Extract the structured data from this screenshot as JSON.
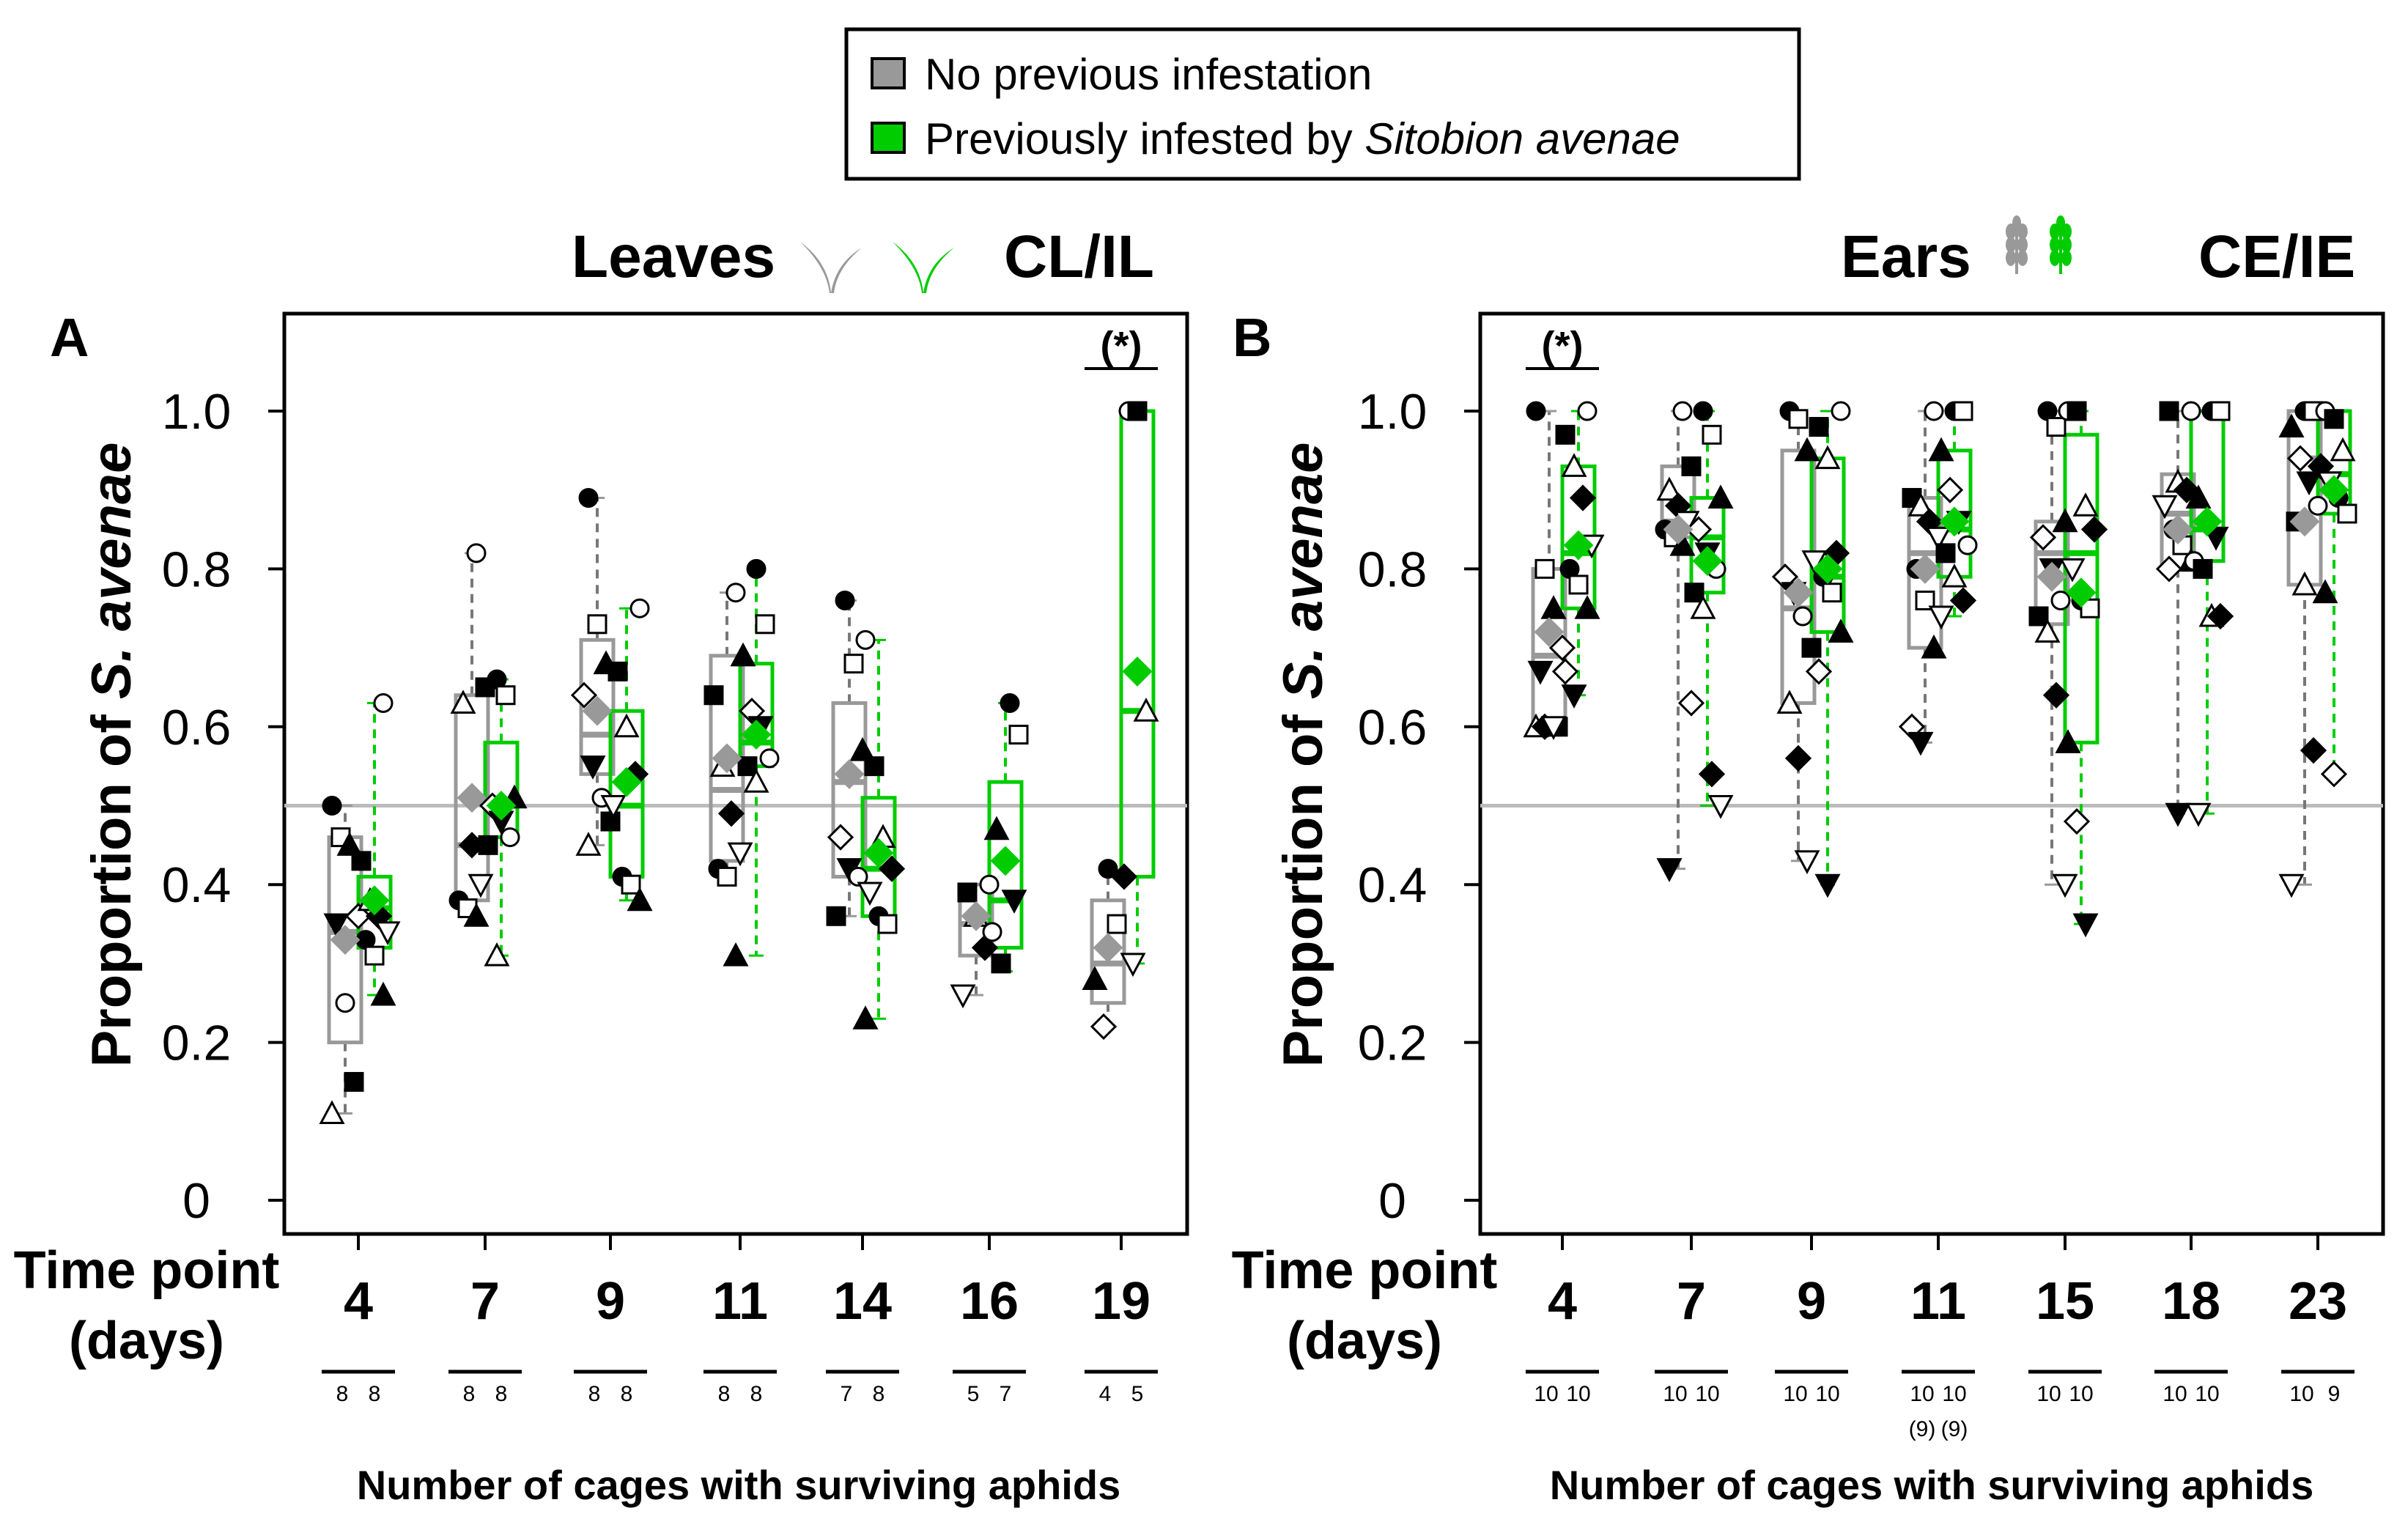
{
  "legend": {
    "items": [
      {
        "label": "No previous infestation",
        "label_italic": "",
        "color": "#999999"
      },
      {
        "label": "Previously infested by ",
        "label_italic": "Sitobion avenae",
        "color": "#00cc00"
      }
    ]
  },
  "reference_line": 0.5,
  "chart_data": [
    {
      "type": "box",
      "panel_label": "A",
      "title": "Leaves",
      "title_icon": "leaf-seedling-icon",
      "subtitle": "CL/IL",
      "ylabel": "Proportion of ",
      "ylabel_italic": "S. avenae",
      "xlabel_line1": "Time point",
      "xlabel_line2": "(days)",
      "ylim": [
        0,
        1.1
      ],
      "yticks": [
        0,
        0.2,
        0.4,
        0.6,
        0.8,
        1.0
      ],
      "ytick_labels": [
        "0",
        "0.2",
        "0.4",
        "0.6",
        "0.8",
        "1.0"
      ],
      "categories": [
        "4",
        "7",
        "9",
        "11",
        "14",
        "16",
        "19"
      ],
      "n_title": "Number of cages with surviving aphids",
      "n_cages": [
        [
          "8",
          "8"
        ],
        [
          "8",
          "8"
        ],
        [
          "8",
          "8"
        ],
        [
          "8",
          "8"
        ],
        [
          "7",
          "8"
        ],
        [
          "5",
          "7"
        ],
        [
          "4",
          "5"
        ]
      ],
      "n_cages_sub": [
        [
          "",
          ""
        ],
        [
          "",
          ""
        ],
        [
          "",
          ""
        ],
        [
          "",
          ""
        ],
        [
          "",
          ""
        ],
        [
          "",
          ""
        ],
        [
          "",
          ""
        ]
      ],
      "significance": [
        {
          "category": "19",
          "label": "(*)"
        }
      ],
      "series": [
        {
          "name": "No previous infestation",
          "color": "#999999",
          "boxes": [
            {
              "q1": 0.2,
              "median": 0.34,
              "q3": 0.46,
              "lo": 0.11,
              "hi": 0.5,
              "mean": 0.33
            },
            {
              "q1": 0.38,
              "median": 0.45,
              "q3": 0.64,
              "lo": 0.36,
              "hi": 0.82,
              "mean": 0.51
            },
            {
              "q1": 0.54,
              "median": 0.59,
              "q3": 0.71,
              "lo": 0.45,
              "hi": 0.89,
              "mean": 0.62
            },
            {
              "q1": 0.43,
              "median": 0.52,
              "q3": 0.69,
              "lo": 0.41,
              "hi": 0.77,
              "mean": 0.56
            },
            {
              "q1": 0.41,
              "median": 0.53,
              "q3": 0.63,
              "lo": 0.36,
              "hi": 0.76,
              "mean": 0.54
            },
            {
              "q1": 0.31,
              "median": 0.35,
              "q3": 0.4,
              "lo": 0.26,
              "hi": 0.4,
              "mean": 0.36
            },
            {
              "q1": 0.25,
              "median": 0.3,
              "q3": 0.38,
              "lo": 0.22,
              "hi": 0.42,
              "mean": 0.32
            }
          ]
        },
        {
          "name": "Previously infested by Sitobion avenae",
          "color": "#00cc00",
          "boxes": [
            {
              "q1": 0.32,
              "median": 0.37,
              "q3": 0.41,
              "lo": 0.26,
              "hi": 0.63,
              "mean": 0.38
            },
            {
              "q1": 0.46,
              "median": 0.5,
              "q3": 0.58,
              "lo": 0.31,
              "hi": 0.66,
              "mean": 0.5
            },
            {
              "q1": 0.41,
              "median": 0.5,
              "q3": 0.62,
              "lo": 0.38,
              "hi": 0.75,
              "mean": 0.53
            },
            {
              "q1": 0.55,
              "median": 0.58,
              "q3": 0.68,
              "lo": 0.31,
              "hi": 0.8,
              "mean": 0.59
            },
            {
              "q1": 0.36,
              "median": 0.42,
              "q3": 0.51,
              "lo": 0.23,
              "hi": 0.71,
              "mean": 0.44
            },
            {
              "q1": 0.32,
              "median": 0.38,
              "q3": 0.53,
              "lo": 0.29,
              "hi": 0.63,
              "mean": 0.43
            },
            {
              "q1": 0.41,
              "median": 0.62,
              "q3": 1.0,
              "lo": 0.3,
              "hi": 1.0,
              "mean": 0.67
            }
          ]
        }
      ],
      "points": [
        [
          [
            0.5,
            0.46,
            0.45,
            0.36,
            0.35,
            0.25,
            0.15,
            0.11
          ],
          [
            0.63,
            0.43,
            0.38,
            0.36,
            0.34,
            0.33,
            0.31,
            0.26
          ]
        ],
        [
          [
            0.82,
            0.65,
            0.63,
            0.45,
            0.4,
            0.38,
            0.37,
            0.36
          ],
          [
            0.66,
            0.64,
            0.51,
            0.5,
            0.48,
            0.46,
            0.45,
            0.31
          ]
        ],
        [
          [
            0.89,
            0.73,
            0.68,
            0.64,
            0.55,
            0.51,
            0.48,
            0.45
          ],
          [
            0.75,
            0.67,
            0.6,
            0.54,
            0.5,
            0.41,
            0.4,
            0.38
          ]
        ],
        [
          [
            0.77,
            0.64,
            0.55,
            0.49,
            0.44,
            0.42,
            0.41,
            0.31
          ],
          [
            0.8,
            0.73,
            0.69,
            0.62,
            0.6,
            0.56,
            0.55,
            0.53
          ]
        ],
        [
          [
            0.76,
            0.68,
            0.57,
            0.46,
            0.42,
            0.41,
            0.36
          ],
          [
            0.71,
            0.55,
            0.46,
            0.42,
            0.39,
            0.36,
            0.35,
            0.23
          ]
        ],
        [
          [
            0.4,
            0.39,
            0.36,
            0.32,
            0.26
          ],
          [
            0.63,
            0.59,
            0.47,
            0.43,
            0.38,
            0.34,
            0.3
          ]
        ],
        [
          [
            0.42,
            0.35,
            0.28,
            0.22
          ],
          [
            1.0,
            1.0,
            0.62,
            0.41,
            0.3
          ]
        ]
      ]
    },
    {
      "type": "box",
      "panel_label": "B",
      "title": "Ears",
      "title_icon": "wheat-ear-icon",
      "subtitle": "CE/IE",
      "ylabel": "Proportion of ",
      "ylabel_italic": "S. avenae",
      "xlabel_line1": "Time point",
      "xlabel_line2": "(days)",
      "ylim": [
        0,
        1.1
      ],
      "yticks": [
        0,
        0.2,
        0.4,
        0.6,
        0.8,
        1.0
      ],
      "ytick_labels": [
        "0",
        "0.2",
        "0.4",
        "0.6",
        "0.8",
        "1.0"
      ],
      "categories": [
        "4",
        "7",
        "9",
        "11",
        "15",
        "18",
        "23"
      ],
      "n_title": "Number of cages with surviving aphids",
      "n_cages": [
        [
          "10",
          "10"
        ],
        [
          "10",
          "10"
        ],
        [
          "10",
          "10"
        ],
        [
          "10",
          "10"
        ],
        [
          "10",
          "10"
        ],
        [
          "10",
          "10"
        ],
        [
          "10",
          "9"
        ]
      ],
      "n_cages_sub": [
        [
          "",
          ""
        ],
        [
          "",
          ""
        ],
        [
          "",
          ""
        ],
        [
          "(9)",
          "(9)"
        ],
        [
          "",
          ""
        ],
        [
          "",
          ""
        ],
        [
          "",
          ""
        ]
      ],
      "significance": [
        {
          "category": "4",
          "label": "(*)"
        }
      ],
      "series": [
        {
          "name": "No previous infestation",
          "color": "#999999",
          "boxes": [
            {
              "q1": 0.6,
              "median": 0.69,
              "q3": 0.8,
              "lo": 0.6,
              "hi": 1.0,
              "mean": 0.72
            },
            {
              "q1": 0.84,
              "median": 0.86,
              "q3": 0.93,
              "lo": 0.42,
              "hi": 1.0,
              "mean": 0.85
            },
            {
              "q1": 0.63,
              "median": 0.75,
              "q3": 0.95,
              "lo": 0.43,
              "hi": 1.0,
              "mean": 0.77
            },
            {
              "q1": 0.7,
              "median": 0.82,
              "q3": 0.89,
              "lo": 0.58,
              "hi": 1.0,
              "mean": 0.8
            },
            {
              "q1": 0.73,
              "median": 0.82,
              "q3": 0.86,
              "lo": 0.4,
              "hi": 1.0,
              "mean": 0.79
            },
            {
              "q1": 0.8,
              "median": 0.87,
              "q3": 0.92,
              "lo": 0.49,
              "hi": 1.0,
              "mean": 0.85
            },
            {
              "q1": 0.78,
              "median": 0.94,
              "q3": 1.0,
              "lo": 0.4,
              "hi": 1.0,
              "mean": 0.86
            }
          ]
        },
        {
          "name": "Previously infested by Sitobion avenae",
          "color": "#00cc00",
          "boxes": [
            {
              "q1": 0.75,
              "median": 0.82,
              "q3": 0.93,
              "lo": 0.64,
              "hi": 1.0,
              "mean": 0.83
            },
            {
              "q1": 0.77,
              "median": 0.84,
              "q3": 0.89,
              "lo": 0.5,
              "hi": 1.0,
              "mean": 0.81
            },
            {
              "q1": 0.72,
              "median": 0.79,
              "q3": 0.94,
              "lo": 0.4,
              "hi": 1.0,
              "mean": 0.8
            },
            {
              "q1": 0.79,
              "median": 0.85,
              "q3": 0.95,
              "lo": 0.74,
              "hi": 1.0,
              "mean": 0.86
            },
            {
              "q1": 0.58,
              "median": 0.82,
              "q3": 0.97,
              "lo": 0.35,
              "hi": 1.0,
              "mean": 0.77
            },
            {
              "q1": 0.81,
              "median": 0.85,
              "q3": 1.0,
              "lo": 0.49,
              "hi": 1.0,
              "mean": 0.86
            },
            {
              "q1": 0.87,
              "median": 0.92,
              "q3": 1.0,
              "lo": 0.54,
              "hi": 1.0,
              "mean": 0.9
            }
          ]
        }
      ],
      "points": [
        [
          [
            1.0,
            0.8,
            0.75,
            0.7,
            0.67,
            0.6,
            0.6,
            0.6,
            0.6,
            0.6
          ],
          [
            1.0,
            0.97,
            0.93,
            0.89,
            0.83,
            0.8,
            0.78,
            0.75,
            0.67,
            0.64
          ]
        ],
        [
          [
            1.0,
            0.93,
            0.9,
            0.88,
            0.86,
            0.85,
            0.84,
            0.83,
            0.63,
            0.42
          ],
          [
            1.0,
            0.97,
            0.89,
            0.85,
            0.82,
            0.8,
            0.77,
            0.75,
            0.54,
            0.5
          ]
        ],
        [
          [
            1.0,
            0.99,
            0.95,
            0.79,
            0.77,
            0.74,
            0.7,
            0.63,
            0.56,
            0.43
          ],
          [
            1.0,
            0.98,
            0.94,
            0.82,
            0.81,
            0.79,
            0.77,
            0.72,
            0.67,
            0.4
          ]
        ],
        [
          [
            1.0,
            0.89,
            0.88,
            0.86,
            0.84,
            0.8,
            0.76,
            0.7,
            0.6,
            0.58
          ],
          [
            1.0,
            1.0,
            0.95,
            0.9,
            0.86,
            0.83,
            0.82,
            0.79,
            0.76,
            0.74
          ]
        ],
        [
          [
            1.0,
            0.98,
            0.86,
            0.84,
            0.8,
            0.76,
            0.74,
            0.72,
            0.64,
            0.4
          ],
          [
            1.0,
            1.0,
            0.88,
            0.85,
            0.8,
            0.76,
            0.75,
            0.58,
            0.48,
            0.35
          ]
        ],
        [
          [
            1.0,
            1.0,
            0.91,
            0.9,
            0.88,
            0.85,
            0.83,
            0.81,
            0.8,
            0.49
          ],
          [
            1.0,
            1.0,
            0.89,
            0.86,
            0.84,
            0.81,
            0.8,
            0.74,
            0.74,
            0.49
          ]
        ],
        [
          [
            1.0,
            1.0,
            0.98,
            0.94,
            0.91,
            0.88,
            0.86,
            0.78,
            0.57,
            0.4
          ],
          [
            1.0,
            0.99,
            0.95,
            0.93,
            0.91,
            0.89,
            0.87,
            0.77,
            0.54
          ]
        ]
      ]
    }
  ]
}
